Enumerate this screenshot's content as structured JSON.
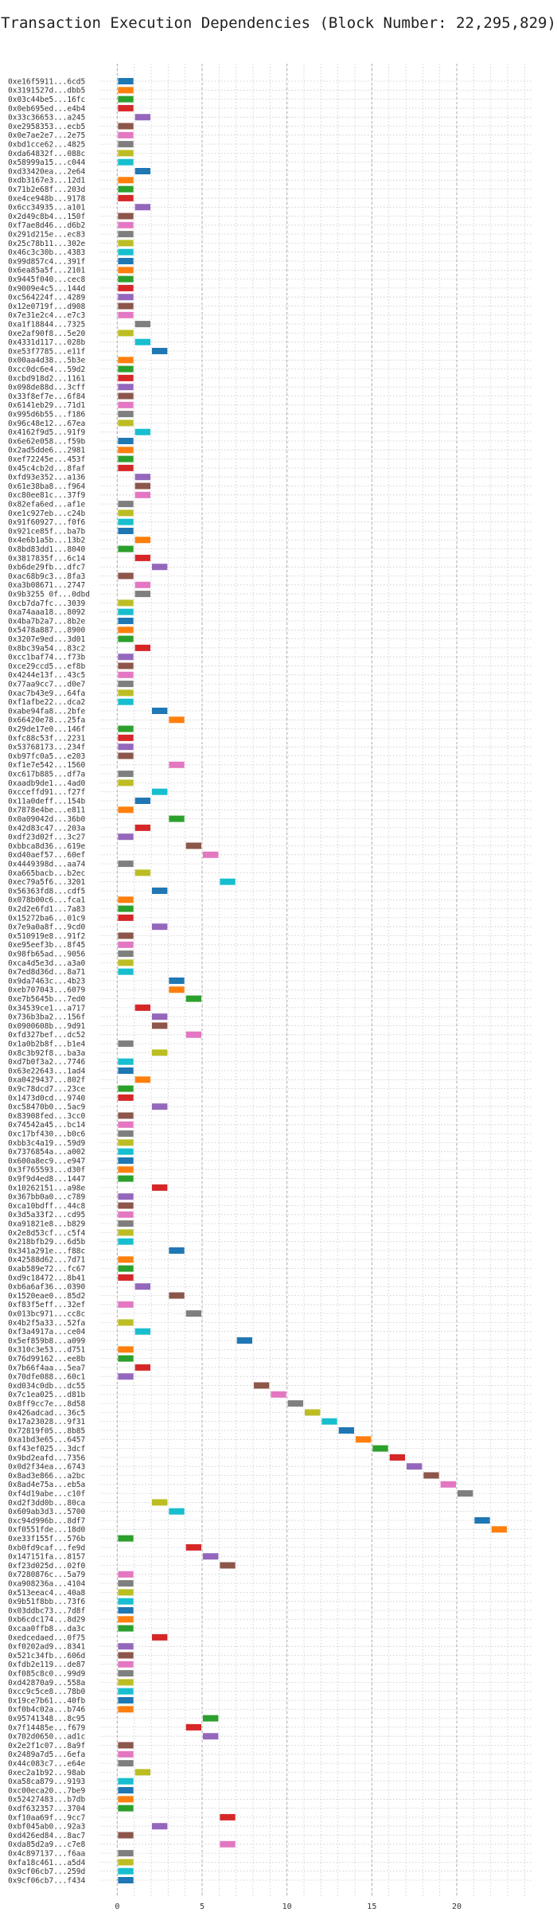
{
  "chart_data": {
    "type": "gantt",
    "title": "Transaction Execution Dependencies (Block Number: 22,295,829)",
    "xlabel": "",
    "ylabel": "",
    "xlim": [
      -1,
      24.5
    ],
    "x_ticks": [
      0,
      5,
      10,
      15,
      20
    ],
    "grid": "dotted",
    "palette": [
      "#1f77b4",
      "#ff7f0e",
      "#2ca02c",
      "#d62728",
      "#9467bd",
      "#8c564b",
      "#e377c2",
      "#7f7f7f",
      "#bcbd22",
      "#17becf"
    ],
    "rows": [
      {
        "tx": "0xe16f5911...6cd5",
        "start": 0
      },
      {
        "tx": "0x3191527d...dbb5",
        "start": 0
      },
      {
        "tx": "0x03c44be5...16fc",
        "start": 0
      },
      {
        "tx": "0x0eb695ed...e4b4",
        "start": 0
      },
      {
        "tx": "0x33c36653...a245",
        "start": 1
      },
      {
        "tx": "0xe2958353...ecb5",
        "start": 0
      },
      {
        "tx": "0x0e7ae2e7...2e75",
        "start": 0
      },
      {
        "tx": "0xbd1cce62...4825",
        "start": 0
      },
      {
        "tx": "0xda64832f...088c",
        "start": 0
      },
      {
        "tx": "0x58999a15...c044",
        "start": 0
      },
      {
        "tx": "0xd33420ea...2e64",
        "start": 1
      },
      {
        "tx": "0xdb3167e3...12d1",
        "start": 0
      },
      {
        "tx": "0x71b2e68f...203d",
        "start": 0
      },
      {
        "tx": "0xe4ce948b...9178",
        "start": 0
      },
      {
        "tx": "0x6cc34935...a101",
        "start": 1
      },
      {
        "tx": "0x2d49c8b4...150f",
        "start": 0
      },
      {
        "tx": "0xf7ae8d46...d6b2",
        "start": 0
      },
      {
        "tx": "0x291d215e...ec83",
        "start": 0
      },
      {
        "tx": "0x25c78b11...302e",
        "start": 0
      },
      {
        "tx": "0x46c3c30b...4383",
        "start": 0
      },
      {
        "tx": "0x99d857c4...391f",
        "start": 0
      },
      {
        "tx": "0x6ea85a5f...2101",
        "start": 0
      },
      {
        "tx": "0x9445f040...cec8",
        "start": 0
      },
      {
        "tx": "0x9009e4c5...144d",
        "start": 0
      },
      {
        "tx": "0xc564224f...4289",
        "start": 0
      },
      {
        "tx": "0x12e0719f...d908",
        "start": 0
      },
      {
        "tx": "0x7e31e2c4...e7c3",
        "start": 0
      },
      {
        "tx": "0xa1f18844...7325",
        "start": 1
      },
      {
        "tx": "0xe2af90f8...5e20",
        "start": 0
      },
      {
        "tx": "0x4331d117...028b",
        "start": 1
      },
      {
        "tx": "0xe53f7785...e11f",
        "start": 2
      },
      {
        "tx": "0x00aa4d38...5b3e",
        "start": 0
      },
      {
        "tx": "0xcc0dc6e4...59d2",
        "start": 0
      },
      {
        "tx": "0xcbd918d2...1161",
        "start": 0
      },
      {
        "tx": "0x098de88d...3cff",
        "start": 0
      },
      {
        "tx": "0x33f8ef7e...6f84",
        "start": 0
      },
      {
        "tx": "0x6141eb29...71d1",
        "start": 0
      },
      {
        "tx": "0x995d6b55...f186",
        "start": 0
      },
      {
        "tx": "0x96c48e12...67ea",
        "start": 0
      },
      {
        "tx": "0x4162f9d5...91f9",
        "start": 1
      },
      {
        "tx": "0x6e62e058...f59b",
        "start": 0
      },
      {
        "tx": "0x2ad5dde6...2981",
        "start": 0
      },
      {
        "tx": "0xef72245e...453f",
        "start": 0
      },
      {
        "tx": "0x45c4cb2d...8faf",
        "start": 0
      },
      {
        "tx": "0xfd93e352...a136",
        "start": 1
      },
      {
        "tx": "0x61e38ba8...f964",
        "start": 1
      },
      {
        "tx": "0xc80ee81c...37f9",
        "start": 1
      },
      {
        "tx": "0x82efa6ed...af1e",
        "start": 0
      },
      {
        "tx": "0xe1c927eb...c24b",
        "start": 0
      },
      {
        "tx": "0x91f60927...f0f6",
        "start": 0
      },
      {
        "tx": "0x921ce85f...ba7b",
        "start": 0
      },
      {
        "tx": "0x4e6b1a5b...13b2",
        "start": 1
      },
      {
        "tx": "0x8bd83dd1...8040",
        "start": 0
      },
      {
        "tx": "0x3817835f...6c14",
        "start": 1
      },
      {
        "tx": "0xb6de29fb...dfc7",
        "start": 2
      },
      {
        "tx": "0xac68b9c3...8fa3",
        "start": 0
      },
      {
        "tx": "0xa3b08671...2747",
        "start": 1
      },
      {
        "tx": "0x9b3255 0f...0dbd",
        "start": 1
      },
      {
        "tx": "0xcb7da7fc...3039",
        "start": 0
      },
      {
        "tx": "0xa74aaa18...8092",
        "start": 0
      },
      {
        "tx": "0x4ba7b2a7...8b2e",
        "start": 0
      },
      {
        "tx": "0x5478a887...8900",
        "start": 0
      },
      {
        "tx": "0x3207e9ed...3d01",
        "start": 0
      },
      {
        "tx": "0x8bc39a54...83c2",
        "start": 1
      },
      {
        "tx": "0xcc1baf74...f73b",
        "start": 0
      },
      {
        "tx": "0xce29ccd5...ef8b",
        "start": 0
      },
      {
        "tx": "0x4244e13f...43c5",
        "start": 0
      },
      {
        "tx": "0x77aa9cc7...d0e7",
        "start": 0
      },
      {
        "tx": "0xac7b43e9...64fa",
        "start": 0
      },
      {
        "tx": "0xf1afbe22...dca2",
        "start": 0
      },
      {
        "tx": "0xabe94fa8...2bfe",
        "start": 2
      },
      {
        "tx": "0x66420e78...25fa",
        "start": 3
      },
      {
        "tx": "0x29de17e0...146f",
        "start": 0
      },
      {
        "tx": "0xfc88c53f...2231",
        "start": 0
      },
      {
        "tx": "0x53768173...234f",
        "start": 0
      },
      {
        "tx": "0xb97fc0a5...e203",
        "start": 0
      },
      {
        "tx": "0xf1e7e542...1560",
        "start": 3
      },
      {
        "tx": "0xc617b885...df7a",
        "start": 0
      },
      {
        "tx": "0xaadb9de1...4ad0",
        "start": 0
      },
      {
        "tx": "0xcceffd91...f27f",
        "start": 2
      },
      {
        "tx": "0x11a0deff...154b",
        "start": 1
      },
      {
        "tx": "0x7878e4be...e811",
        "start": 0
      },
      {
        "tx": "0x0a09042d...36b0",
        "start": 3
      },
      {
        "tx": "0x42d83c47...203a",
        "start": 1
      },
      {
        "tx": "0xdf23d02f...3c27",
        "start": 0
      },
      {
        "tx": "0xbbca8d36...619e",
        "start": 4
      },
      {
        "tx": "0xd40aef57...60ef",
        "start": 5
      },
      {
        "tx": "0x4449398d...aa74",
        "start": 0
      },
      {
        "tx": "0xa665bacb...b2ec",
        "start": 1
      },
      {
        "tx": "0xec79a5f6...3201",
        "start": 6
      },
      {
        "tx": "0x56363fd8...cdf5",
        "start": 2
      },
      {
        "tx": "0x078b00c6...fca1",
        "start": 0
      },
      {
        "tx": "0x2d2e6fd1...7a83",
        "start": 0
      },
      {
        "tx": "0x15272ba6...01c9",
        "start": 0
      },
      {
        "tx": "0x7e9a0a8f...9cd0",
        "start": 2
      },
      {
        "tx": "0x510919e8...91f2",
        "start": 0
      },
      {
        "tx": "0xe95eef3b...8f45",
        "start": 0
      },
      {
        "tx": "0x98fb65ad...9056",
        "start": 0
      },
      {
        "tx": "0xca4d5e3d...a3a0",
        "start": 0
      },
      {
        "tx": "0x7ed8d36d...8a71",
        "start": 0
      },
      {
        "tx": "0x9da7463c...4b23",
        "start": 3
      },
      {
        "tx": "0xeb707043...6079",
        "start": 3
      },
      {
        "tx": "0xe7b5645b...7ed0",
        "start": 4
      },
      {
        "tx": "0x34539ce1...a717",
        "start": 1
      },
      {
        "tx": "0x736b3ba2...156f",
        "start": 2
      },
      {
        "tx": "0x0900608b...9d91",
        "start": 2
      },
      {
        "tx": "0xfd327bef...dc52",
        "start": 4
      },
      {
        "tx": "0x1a0b2b8f...b1e4",
        "start": 0
      },
      {
        "tx": "0x8c3b92f8...ba3a",
        "start": 2
      },
      {
        "tx": "0xd7b0f3a2...7746",
        "start": 0
      },
      {
        "tx": "0x63e22643...1ad4",
        "start": 0
      },
      {
        "tx": "0xa0429437...802f",
        "start": 1
      },
      {
        "tx": "0x9c78dcd7...23ce",
        "start": 0
      },
      {
        "tx": "0x1473d0cd...9740",
        "start": 0
      },
      {
        "tx": "0xc58470b0...5ac9",
        "start": 2
      },
      {
        "tx": "0x83908fed...3cc0",
        "start": 0
      },
      {
        "tx": "0x74542a45...bc14",
        "start": 0
      },
      {
        "tx": "0xc17bf430...b0c6",
        "start": 0
      },
      {
        "tx": "0xbb3c4a19...59d9",
        "start": 0
      },
      {
        "tx": "0x7376854a...a002",
        "start": 0
      },
      {
        "tx": "0x600a8ec9...e947",
        "start": 0
      },
      {
        "tx": "0x3f765593...d30f",
        "start": 0
      },
      {
        "tx": "0x9f9d4ed8...1447",
        "start": 0
      },
      {
        "tx": "0x10262151...a98e",
        "start": 2
      },
      {
        "tx": "0x367bb0a0...c789",
        "start": 0
      },
      {
        "tx": "0xca10bdff...44c8",
        "start": 0
      },
      {
        "tx": "0x3d5a33f2...cd95",
        "start": 0
      },
      {
        "tx": "0xa91821e8...b829",
        "start": 0
      },
      {
        "tx": "0x2e8d53cf...c5f4",
        "start": 0
      },
      {
        "tx": "0x218bfb29...6d5b",
        "start": 0
      },
      {
        "tx": "0x341a291e...f88c",
        "start": 3
      },
      {
        "tx": "0x42588d62...7d71",
        "start": 0
      },
      {
        "tx": "0xab589e72...fc67",
        "start": 0
      },
      {
        "tx": "0xd9c18472...8b41",
        "start": 0
      },
      {
        "tx": "0xb6a6af36...0390",
        "start": 1
      },
      {
        "tx": "0x1520eae0...85d2",
        "start": 3
      },
      {
        "tx": "0xf83f5eff...32ef",
        "start": 0
      },
      {
        "tx": "0x013bc971...cc8c",
        "start": 4
      },
      {
        "tx": "0x4b2f5a33...52fa",
        "start": 0
      },
      {
        "tx": "0xf3a4917a...ce04",
        "start": 1
      },
      {
        "tx": "0x5ef859b8...a099",
        "start": 7
      },
      {
        "tx": "0x310c3e53...d751",
        "start": 0
      },
      {
        "tx": "0x76d99162...ee8b",
        "start": 0
      },
      {
        "tx": "0x7b66f4aa...5ea7",
        "start": 1
      },
      {
        "tx": "0x70dfe088...60c1",
        "start": 0
      },
      {
        "tx": "0xd034c0db...dc55",
        "start": 8
      },
      {
        "tx": "0x7c1ea025...d81b",
        "start": 9
      },
      {
        "tx": "0x8ff9cc7e...8d58",
        "start": 10
      },
      {
        "tx": "0x426adcad...36c5",
        "start": 11
      },
      {
        "tx": "0x17a23028...9f31",
        "start": 12
      },
      {
        "tx": "0x72819f05...8b85",
        "start": 13
      },
      {
        "tx": "0xa1bd3e65...6457",
        "start": 14
      },
      {
        "tx": "0xf43ef025...3dcf",
        "start": 15
      },
      {
        "tx": "0x9bd2eafd...7356",
        "start": 16
      },
      {
        "tx": "0x0d2f34ea...6743",
        "start": 17
      },
      {
        "tx": "0x8ad3e866...a2bc",
        "start": 18
      },
      {
        "tx": "0x8ad4e75a...eb5a",
        "start": 19
      },
      {
        "tx": "0xf4d19abe...c10f",
        "start": 20
      },
      {
        "tx": "0xd2f3dd0b...80ca",
        "start": 2
      },
      {
        "tx": "0x609ab3d3...5700",
        "start": 3
      },
      {
        "tx": "0xc94d996b...8df7",
        "start": 21
      },
      {
        "tx": "0xf0551fde...18d0",
        "start": 22
      },
      {
        "tx": "0xe33f155f...576b",
        "start": 0
      },
      {
        "tx": "0xb0fd9caf...fe9d",
        "start": 4
      },
      {
        "tx": "0x147151fa...8157",
        "start": 5
      },
      {
        "tx": "0xf23d025d...02f0",
        "start": 6
      },
      {
        "tx": "0x7280876c...5a79",
        "start": 0
      },
      {
        "tx": "0xa908236a...4104",
        "start": 0
      },
      {
        "tx": "0x513eeac4...40a8",
        "start": 0
      },
      {
        "tx": "0x9b51f8bb...73f6",
        "start": 0
      },
      {
        "tx": "0x03ddbc73...7d8f",
        "start": 0
      },
      {
        "tx": "0xb6cdc174...8d29",
        "start": 0
      },
      {
        "tx": "0xcaa0ffb8...da3c",
        "start": 0
      },
      {
        "tx": "0xedcedaed...0f75",
        "start": 2
      },
      {
        "tx": "0xf0202ad9...8341",
        "start": 0
      },
      {
        "tx": "0x521c34fb...606d",
        "start": 0
      },
      {
        "tx": "0xfdb2e119...de87",
        "start": 0
      },
      {
        "tx": "0xf085c8c0...99d9",
        "start": 0
      },
      {
        "tx": "0xd42870a9...558a",
        "start": 0
      },
      {
        "tx": "0xcc9c5ce8...78b0",
        "start": 0
      },
      {
        "tx": "0x19ce7b61...40fb",
        "start": 0
      },
      {
        "tx": "0xf0b4c02a...b746",
        "start": 0
      },
      {
        "tx": "0x95741348...8c95",
        "start": 5
      },
      {
        "tx": "0x7f14485e...f679",
        "start": 4
      },
      {
        "tx": "0x702d0650...ad1c",
        "start": 5
      },
      {
        "tx": "0x2e2f1c07...8a9f",
        "start": 0
      },
      {
        "tx": "0x2489a7d5...6efa",
        "start": 0
      },
      {
        "tx": "0x44c083c7...e64e",
        "start": 0
      },
      {
        "tx": "0xec2a1b92...98ab",
        "start": 1
      },
      {
        "tx": "0xa58ca879...9193",
        "start": 0
      },
      {
        "tx": "0xc00eca20...7be9",
        "start": 0
      },
      {
        "tx": "0x52427483...b7db",
        "start": 0
      },
      {
        "tx": "0xdf632357...3704",
        "start": 0
      },
      {
        "tx": "0xf10aa69f...9cc7",
        "start": 6
      },
      {
        "tx": "0xbf045ab0...92a3",
        "start": 2
      },
      {
        "tx": "0xd426ed84...8ac7",
        "start": 0
      },
      {
        "tx": "0xda85d2a9...c7e8",
        "start": 6
      },
      {
        "tx": "0x4c897137...f6aa",
        "start": 0
      },
      {
        "tx": "0xfa18c461...a5d4",
        "start": 0
      },
      {
        "tx": "0x9cf06cb7...259d",
        "start": 0
      },
      {
        "tx": "0x9cf06cb7...f434",
        "start": 0
      }
    ]
  }
}
